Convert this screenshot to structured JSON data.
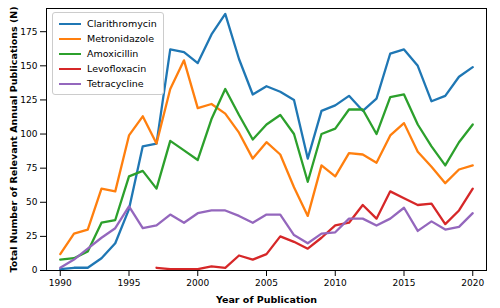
{
  "chart_data": {
    "type": "line",
    "x_label": "Year of Publication",
    "y_label": "Total Number of Relevant Annual Publications (N)",
    "x": [
      1990,
      1991,
      1992,
      1993,
      1994,
      1995,
      1996,
      1997,
      1998,
      1999,
      2000,
      2001,
      2002,
      2003,
      2004,
      2005,
      2006,
      2007,
      2008,
      2009,
      2010,
      2011,
      2012,
      2013,
      2014,
      2015,
      2016,
      2017,
      2018,
      2019,
      2020
    ],
    "series": [
      {
        "name": "Clarithromycin",
        "color": "#1f77b4",
        "values": [
          1,
          2,
          2,
          9,
          20,
          45,
          91,
          93,
          162,
          160,
          152,
          173,
          188,
          155,
          129,
          135,
          131,
          125,
          82,
          117,
          121,
          128,
          117,
          126,
          159,
          162,
          150,
          124,
          128,
          142,
          149
        ]
      },
      {
        "name": "Metronidazole",
        "color": "#ff7f0e",
        "values": [
          12,
          27,
          30,
          60,
          58,
          99,
          113,
          93,
          133,
          154,
          119,
          122,
          115,
          101,
          82,
          94,
          85,
          61,
          40,
          77,
          69,
          86,
          85,
          79,
          99,
          108,
          87,
          76,
          64,
          74,
          77
        ]
      },
      {
        "name": "Amoxicillin",
        "color": "#2ca02c",
        "values": [
          8,
          9,
          14,
          35,
          37,
          69,
          73,
          60,
          95,
          88,
          81,
          111,
          133,
          114,
          96,
          107,
          114,
          100,
          65,
          100,
          104,
          118,
          118,
          100,
          127,
          129,
          107,
          91,
          77,
          94,
          107
        ]
      },
      {
        "name": "Levofloxacin",
        "color": "#d62728",
        "values": [
          null,
          null,
          null,
          null,
          null,
          null,
          null,
          2,
          1,
          1,
          1,
          3,
          2,
          11,
          8,
          12,
          25,
          21,
          16,
          24,
          33,
          35,
          48,
          38,
          58,
          53,
          48,
          49,
          34,
          44,
          60
        ]
      },
      {
        "name": "Tetracycline",
        "color": "#9467bd",
        "values": [
          2,
          8,
          16,
          24,
          31,
          47,
          31,
          33,
          41,
          35,
          42,
          44,
          44,
          40,
          35,
          41,
          41,
          26,
          20,
          27,
          28,
          38,
          38,
          33,
          38,
          46,
          29,
          36,
          30,
          32,
          42
        ]
      }
    ],
    "xlim": [
      1989,
      2021
    ],
    "xticks": [
      1990,
      1995,
      2000,
      2005,
      2010,
      2015,
      2020
    ],
    "ylim": [
      0,
      192
    ],
    "yticks": [
      0,
      25,
      50,
      75,
      100,
      125,
      150,
      175
    ],
    "grid": false,
    "legend": "upper left"
  }
}
